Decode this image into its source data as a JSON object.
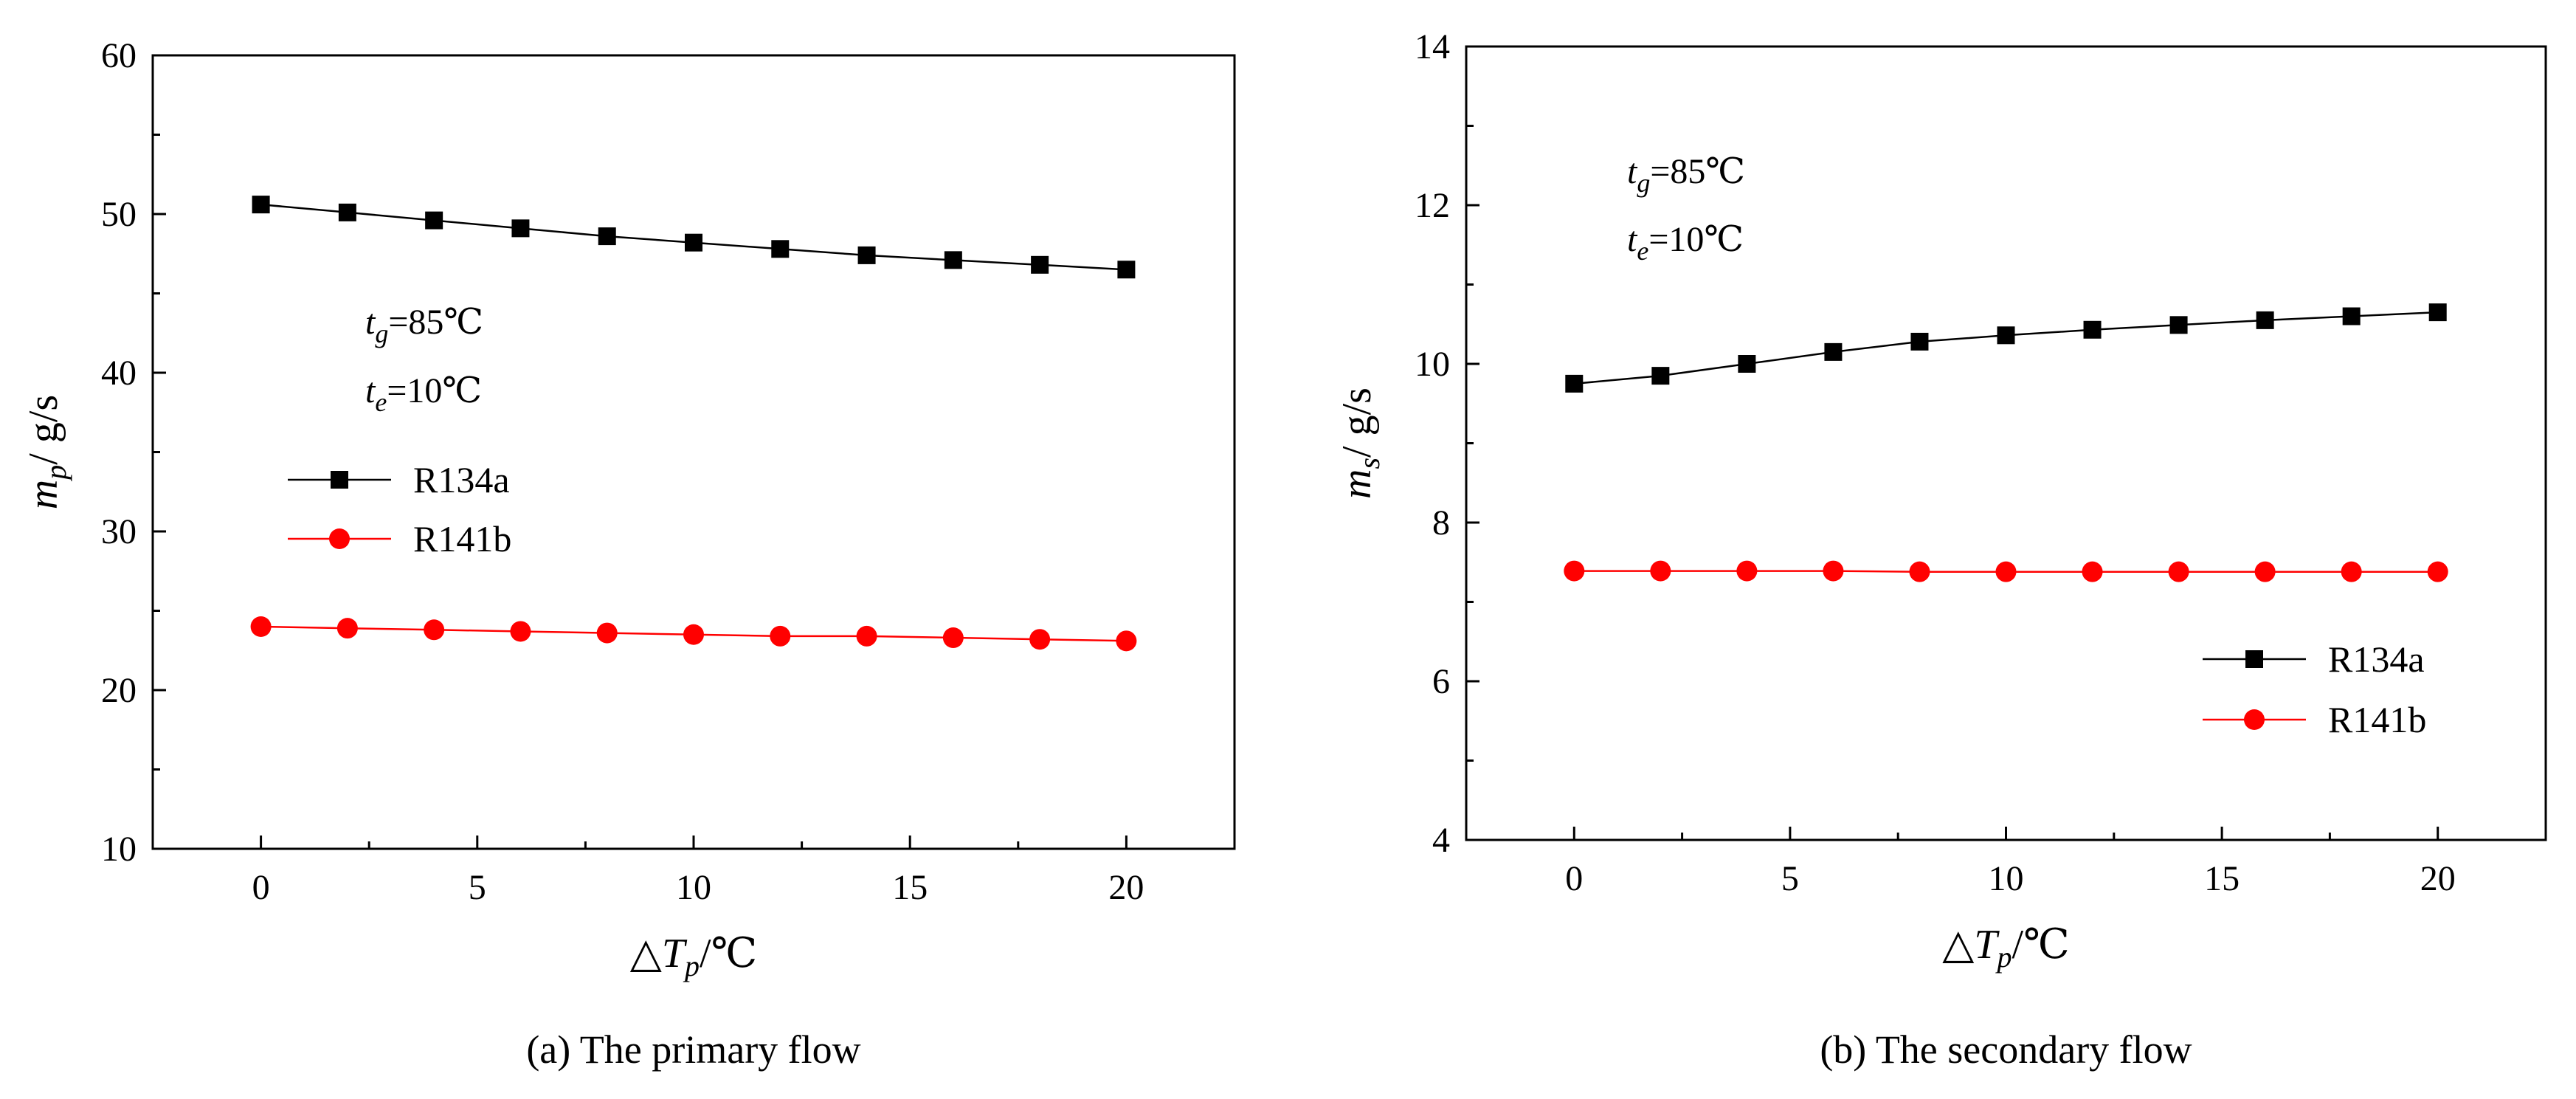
{
  "chart_data": [
    {
      "type": "line",
      "title": "",
      "caption": "(a)  The primary flow",
      "xlabel": {
        "prefix": "△",
        "var": "T",
        "sub": "p",
        "suffix": "/℃"
      },
      "ylabel": {
        "var": "m",
        "sub": "p",
        "suffix": "/ g/s"
      },
      "xlim": [
        -2.5,
        22.5
      ],
      "ylim": [
        10,
        60
      ],
      "xticks": [
        0,
        5,
        10,
        15,
        20
      ],
      "yticks": [
        10,
        20,
        30,
        40,
        50,
        60
      ],
      "annotations": [
        {
          "var": "t",
          "sub": "g",
          "value": "=85℃"
        },
        {
          "var": "t",
          "sub": "e",
          "value": "=10℃"
        }
      ],
      "legend_position": "center-left",
      "x": [
        0,
        2,
        4,
        6,
        8,
        10,
        12,
        14,
        16,
        18,
        20
      ],
      "series": [
        {
          "name": "R134a",
          "color": "#000000",
          "marker": "square",
          "values": [
            50.6,
            50.1,
            49.6,
            49.1,
            48.6,
            48.2,
            47.8,
            47.4,
            47.1,
            46.8,
            46.5
          ]
        },
        {
          "name": "R141b",
          "color": "#ff0000",
          "marker": "circle",
          "values": [
            24.0,
            23.9,
            23.8,
            23.7,
            23.6,
            23.5,
            23.4,
            23.4,
            23.3,
            23.2,
            23.1
          ]
        }
      ]
    },
    {
      "type": "line",
      "title": "",
      "caption": "(b)  The secondary flow",
      "xlabel": {
        "prefix": "△",
        "var": "T",
        "sub": "p",
        "suffix": "/℃"
      },
      "ylabel": {
        "var": "m",
        "sub": "s",
        "suffix": "/ g/s"
      },
      "xlim": [
        -2.5,
        22.5
      ],
      "ylim": [
        4,
        14
      ],
      "xticks": [
        0,
        5,
        10,
        15,
        20
      ],
      "yticks": [
        4,
        6,
        8,
        10,
        12,
        14
      ],
      "annotations": [
        {
          "var": "t",
          "sub": "g",
          "value": "=85℃"
        },
        {
          "var": "t",
          "sub": "e",
          "value": "=10℃"
        }
      ],
      "legend_position": "lower-right",
      "x": [
        0,
        2,
        4,
        6,
        8,
        10,
        12,
        14,
        16,
        18,
        20
      ],
      "series": [
        {
          "name": "R134a",
          "color": "#000000",
          "marker": "square",
          "values": [
            9.75,
            9.85,
            10.0,
            10.15,
            10.28,
            10.36,
            10.43,
            10.49,
            10.55,
            10.6,
            10.65
          ]
        },
        {
          "name": "R141b",
          "color": "#ff0000",
          "marker": "circle",
          "values": [
            7.39,
            7.39,
            7.39,
            7.39,
            7.38,
            7.38,
            7.38,
            7.38,
            7.38,
            7.38,
            7.38
          ]
        }
      ]
    }
  ]
}
